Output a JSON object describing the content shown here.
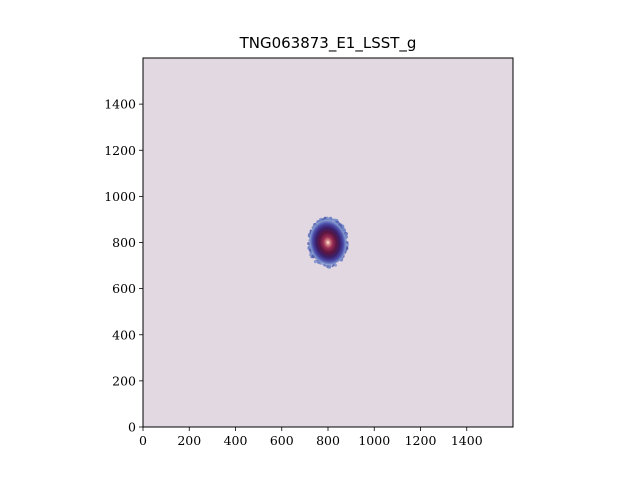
{
  "title": "TNG063873_E1_LSST_g",
  "axes": {
    "xlim": [
      0,
      1600
    ],
    "ylim": [
      0,
      1600
    ],
    "x_ticks": [
      0,
      200,
      400,
      600,
      800,
      1000,
      1200,
      1400
    ],
    "y_ticks": [
      0,
      200,
      400,
      600,
      800,
      1000,
      1200,
      1400
    ],
    "x_tick_labels": [
      "0",
      "200",
      "400",
      "600",
      "800",
      "1000",
      "1200",
      "1400"
    ],
    "y_tick_labels": [
      "0",
      "200",
      "400",
      "600",
      "800",
      "1000",
      "1200",
      "1400"
    ],
    "background_color": "#e2d8e2"
  },
  "galaxy": {
    "center": [
      800,
      800
    ],
    "semi_axis_x": 80,
    "semi_axis_y": 100,
    "rotation_deg": -10,
    "colormap": [
      "#e2d8e2",
      "#6f86c8",
      "#4a3f9e",
      "#3a1f6a",
      "#5a1540",
      "#8b2550",
      "#c8707a",
      "#f2e8e0"
    ]
  }
}
